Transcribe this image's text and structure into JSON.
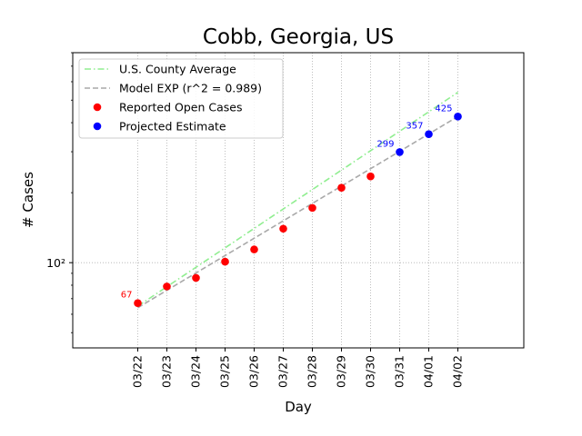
{
  "chart_data": {
    "type": "scatter",
    "title": "Cobb, Georgia, US",
    "xlabel": "Day",
    "ylabel": "# Cases",
    "yscale": "log",
    "ylim": [
      43,
      800
    ],
    "grid": true,
    "legend_position": "top-left",
    "categories": [
      "03/22",
      "03/23",
      "03/24",
      "03/25",
      "03/26",
      "03/27",
      "03/28",
      "03/29",
      "03/30",
      "03/31",
      "04/01",
      "04/02"
    ],
    "y_tick_label": "10²",
    "y_tick_value": 100,
    "series": [
      {
        "name": "U.S. County Average",
        "kind": "line",
        "style": "dashdot",
        "color": "#90ee90",
        "x": [
          "03/22",
          "04/02"
        ],
        "y": [
          65,
          540
        ]
      },
      {
        "name": "Model EXP (r^2 = 0.989)",
        "kind": "line",
        "style": "dashed",
        "color": "#a9a9a9",
        "x": [
          "03/22",
          "04/02"
        ],
        "y": [
          64,
          425
        ]
      },
      {
        "name": "Reported Open Cases",
        "kind": "scatter",
        "color": "#ff0000",
        "x": [
          "03/22",
          "03/23",
          "03/24",
          "03/25",
          "03/26",
          "03/27",
          "03/28",
          "03/29",
          "03/30"
        ],
        "y": [
          67,
          79,
          86,
          101,
          114,
          140,
          172,
          210,
          235
        ]
      },
      {
        "name": "Projected Estimate",
        "kind": "scatter",
        "color": "#0000ff",
        "x": [
          "03/31",
          "04/01",
          "04/02"
        ],
        "y": [
          299,
          357,
          425
        ]
      }
    ],
    "annotations": [
      {
        "text": "67",
        "x": "03/22",
        "y": 67,
        "color": "#ff0000"
      },
      {
        "text": "299",
        "x": "03/31",
        "y": 299,
        "color": "#0000ff"
      },
      {
        "text": "357",
        "x": "04/01",
        "y": 357,
        "color": "#0000ff"
      },
      {
        "text": "425",
        "x": "04/02",
        "y": 425,
        "color": "#0000ff"
      }
    ]
  }
}
